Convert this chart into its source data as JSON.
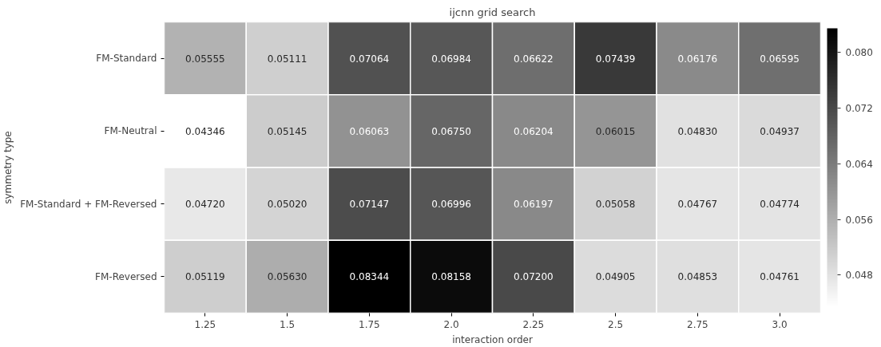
{
  "chart_data": {
    "type": "heatmap",
    "title": "ijcnn grid search",
    "xlabel": "interaction order",
    "ylabel": "symmetry type",
    "categories": [
      "1.25",
      "1.5",
      "1.75",
      "2.0",
      "2.25",
      "2.5",
      "2.75",
      "3.0"
    ],
    "y_categories": [
      "FM-Standard",
      "FM-Neutral",
      "FM-Standard + FM-Reversed",
      "FM-Reversed"
    ],
    "cells": [
      [
        0.05555,
        0.05111,
        0.07064,
        0.06984,
        0.06622,
        0.07439,
        0.06176,
        0.06595
      ],
      [
        0.04346,
        0.05145,
        0.06063,
        0.0675,
        0.06204,
        0.06015,
        0.0483,
        0.04937
      ],
      [
        0.0472,
        0.0502,
        0.07147,
        0.06996,
        0.06197,
        0.05058,
        0.04767,
        0.04774
      ],
      [
        0.05119,
        0.0563,
        0.08344,
        0.08158,
        0.072,
        0.04905,
        0.04853,
        0.04761
      ]
    ],
    "cell_labels": [
      [
        "0.05555",
        "0.05111",
        "0.07064",
        "0.06984",
        "0.06622",
        "0.07439",
        "0.06176",
        "0.06595"
      ],
      [
        "0.04346",
        "0.05145",
        "0.06063",
        "0.06750",
        "0.06204",
        "0.06015",
        "0.04830",
        "0.04937"
      ],
      [
        "0.04720",
        "0.05020",
        "0.07147",
        "0.06996",
        "0.06197",
        "0.05058",
        "0.04767",
        "0.04774"
      ],
      [
        "0.05119",
        "0.05630",
        "0.08344",
        "0.08158",
        "0.07200",
        "0.04905",
        "0.04853",
        "0.04761"
      ]
    ],
    "clim": [
      0.04346,
      0.08344
    ],
    "cticks": [
      {
        "value": 0.048,
        "label": "0.048"
      },
      {
        "value": 0.056,
        "label": "0.056"
      },
      {
        "value": 0.064,
        "label": "0.064"
      },
      {
        "value": 0.072,
        "label": "0.072"
      },
      {
        "value": 0.08,
        "label": "0.080"
      }
    ]
  }
}
